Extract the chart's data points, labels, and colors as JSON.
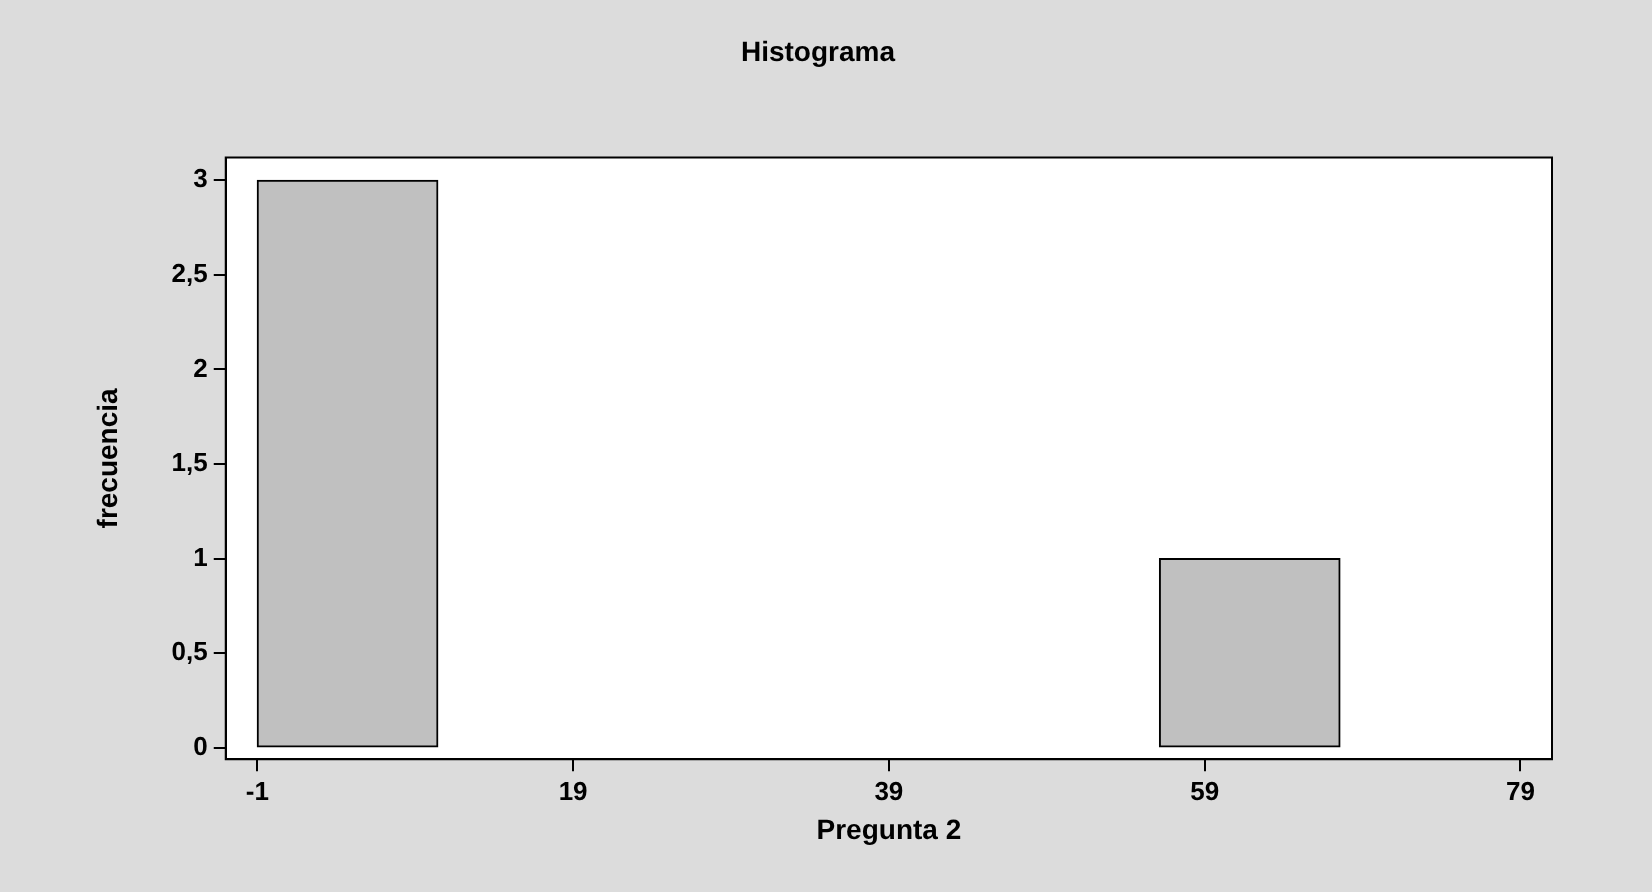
{
  "chart_data": {
    "type": "histogram",
    "title": "Histograma",
    "xlabel": "Pregunta 2",
    "ylabel": "frecuencia",
    "bins": [
      -1,
      10.43,
      21.86,
      33.29,
      44.71,
      56.14,
      67.57,
      79
    ],
    "values": [
      3,
      0,
      0,
      0,
      0,
      1,
      0
    ],
    "color": "#c0c0c0",
    "xlim": [
      -3,
      81
    ],
    "xticks": [
      -1,
      19,
      39,
      59,
      79
    ],
    "ylim": [
      -0.06,
      3.12
    ],
    "yticks": [
      0,
      {
        "value": 0.5,
        "label": "0,5"
      },
      1,
      {
        "value": 1.5,
        "label": "1,5"
      },
      2,
      {
        "value": 2.5,
        "label": "2,5"
      },
      3
    ],
    "grid": false,
    "legend": false
  }
}
